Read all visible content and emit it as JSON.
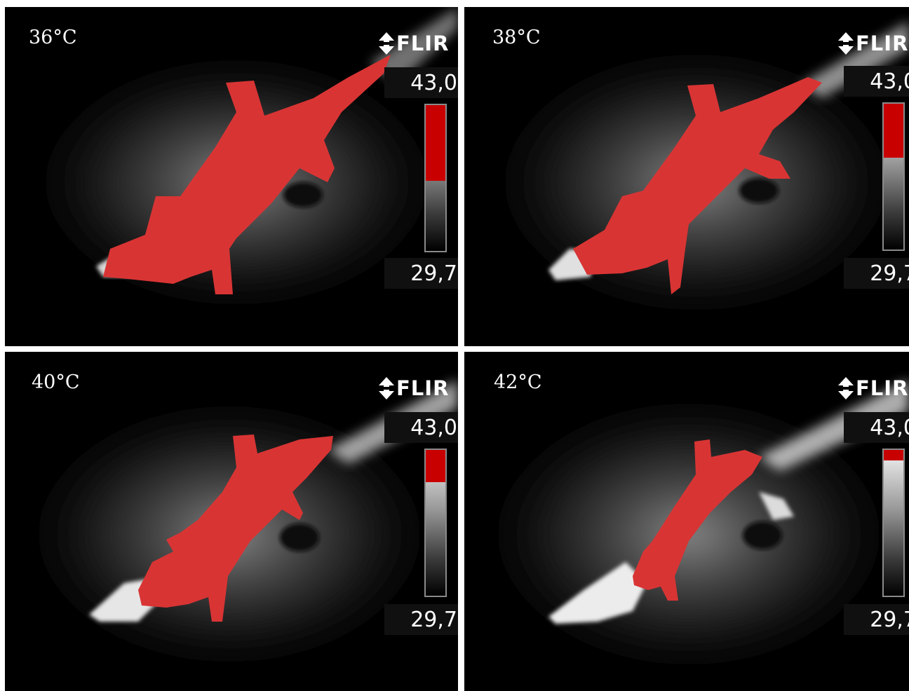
{
  "panels": [
    {
      "temperature_label": "36°C",
      "brand": "FLIR",
      "scale_max": "43,0",
      "scale_min": "29,7",
      "fill_fraction": 0.52
    },
    {
      "temperature_label": "38°C",
      "brand": "FLIR",
      "scale_max": "43,0",
      "scale_min": "29,7",
      "fill_fraction": 0.37
    },
    {
      "temperature_label": "40°C",
      "brand": "FLIR",
      "scale_max": "43,0",
      "scale_min": "29,7",
      "fill_fraction": 0.22
    },
    {
      "temperature_label": "42°C",
      "brand": "FLIR",
      "scale_max": "43,0",
      "scale_min": "29,7",
      "fill_fraction": 0.07
    }
  ],
  "colors": {
    "isotherm": "#d93434",
    "scale_hot": "#c80000",
    "background": "#000000",
    "divider": "#ffffff"
  },
  "icons": {
    "brand_logo": "flir-logo-icon"
  }
}
